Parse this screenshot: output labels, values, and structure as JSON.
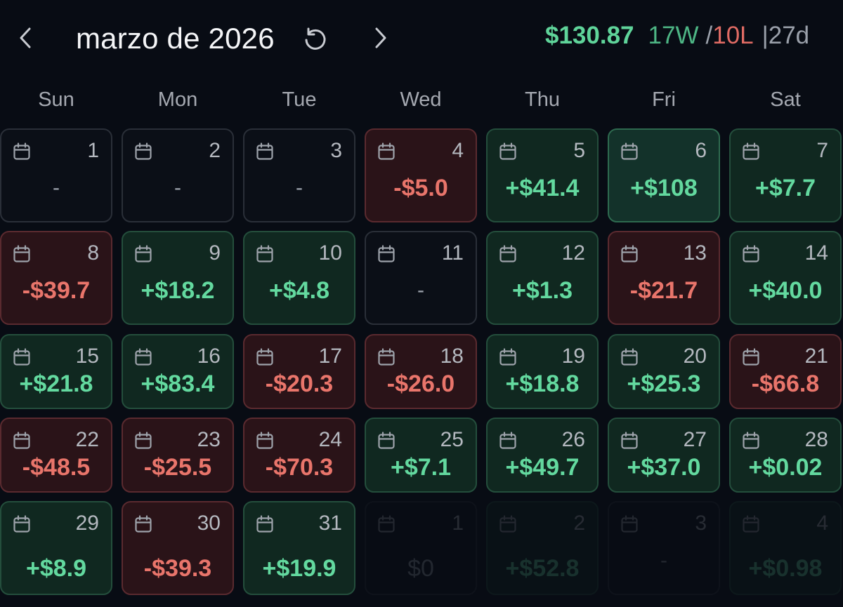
{
  "header": {
    "title": "marzo de 2026",
    "total_pnl": "$130.87",
    "wins": "17W",
    "slash": "/",
    "losses": "10L",
    "pipe": "|",
    "days": "27d"
  },
  "weekdays": [
    "Sun",
    "Mon",
    "Tue",
    "Wed",
    "Thu",
    "Fri",
    "Sat"
  ],
  "weeks": [
    [
      {
        "day": "1",
        "pnl": "-",
        "status": "none"
      },
      {
        "day": "2",
        "pnl": "-",
        "status": "none"
      },
      {
        "day": "3",
        "pnl": "-",
        "status": "none"
      },
      {
        "day": "4",
        "pnl": "-$5.0",
        "status": "loss"
      },
      {
        "day": "5",
        "pnl": "+$41.4",
        "status": "profit"
      },
      {
        "day": "6",
        "pnl": "+$108",
        "status": "profit-strong"
      },
      {
        "day": "7",
        "pnl": "+$7.7",
        "status": "profit"
      }
    ],
    [
      {
        "day": "8",
        "pnl": "-$39.7",
        "status": "loss"
      },
      {
        "day": "9",
        "pnl": "+$18.2",
        "status": "profit"
      },
      {
        "day": "10",
        "pnl": "+$4.8",
        "status": "profit"
      },
      {
        "day": "11",
        "pnl": "-",
        "status": "none"
      },
      {
        "day": "12",
        "pnl": "+$1.3",
        "status": "profit"
      },
      {
        "day": "13",
        "pnl": "-$21.7",
        "status": "loss"
      },
      {
        "day": "14",
        "pnl": "+$40.0",
        "status": "profit"
      }
    ],
    [
      {
        "day": "15",
        "pnl": "+$21.8",
        "status": "profit"
      },
      {
        "day": "16",
        "pnl": "+$83.4",
        "status": "profit"
      },
      {
        "day": "17",
        "pnl": "-$20.3",
        "status": "loss"
      },
      {
        "day": "18",
        "pnl": "-$26.0",
        "status": "loss"
      },
      {
        "day": "19",
        "pnl": "+$18.8",
        "status": "profit"
      },
      {
        "day": "20",
        "pnl": "+$25.3",
        "status": "profit"
      },
      {
        "day": "21",
        "pnl": "-$66.8",
        "status": "loss"
      }
    ],
    [
      {
        "day": "22",
        "pnl": "-$48.5",
        "status": "loss"
      },
      {
        "day": "23",
        "pnl": "-$25.5",
        "status": "loss"
      },
      {
        "day": "24",
        "pnl": "-$70.3",
        "status": "loss"
      },
      {
        "day": "25",
        "pnl": "+$7.1",
        "status": "profit"
      },
      {
        "day": "26",
        "pnl": "+$49.7",
        "status": "profit"
      },
      {
        "day": "27",
        "pnl": "+$37.0",
        "status": "profit"
      },
      {
        "day": "28",
        "pnl": "+$0.02",
        "status": "profit"
      }
    ],
    [
      {
        "day": "29",
        "pnl": "+$8.9",
        "status": "profit"
      },
      {
        "day": "30",
        "pnl": "-$39.3",
        "status": "loss"
      },
      {
        "day": "31",
        "pnl": "+$19.9",
        "status": "profit"
      },
      {
        "day": "1",
        "pnl": "$0",
        "status": "none",
        "dim": true
      },
      {
        "day": "2",
        "pnl": "+$52.8",
        "status": "profit",
        "dim": true
      },
      {
        "day": "3",
        "pnl": "-",
        "status": "none",
        "dim": true
      },
      {
        "day": "4",
        "pnl": "+$0.98",
        "status": "profit",
        "dim": true
      }
    ]
  ],
  "icons": {
    "prev": "chevron-left-icon",
    "next": "chevron-right-icon",
    "reset": "refresh-icon",
    "day": "calendar-icon"
  },
  "colors": {
    "profit": "#63d99f",
    "loss": "#e9756b",
    "background": "#080c14"
  }
}
